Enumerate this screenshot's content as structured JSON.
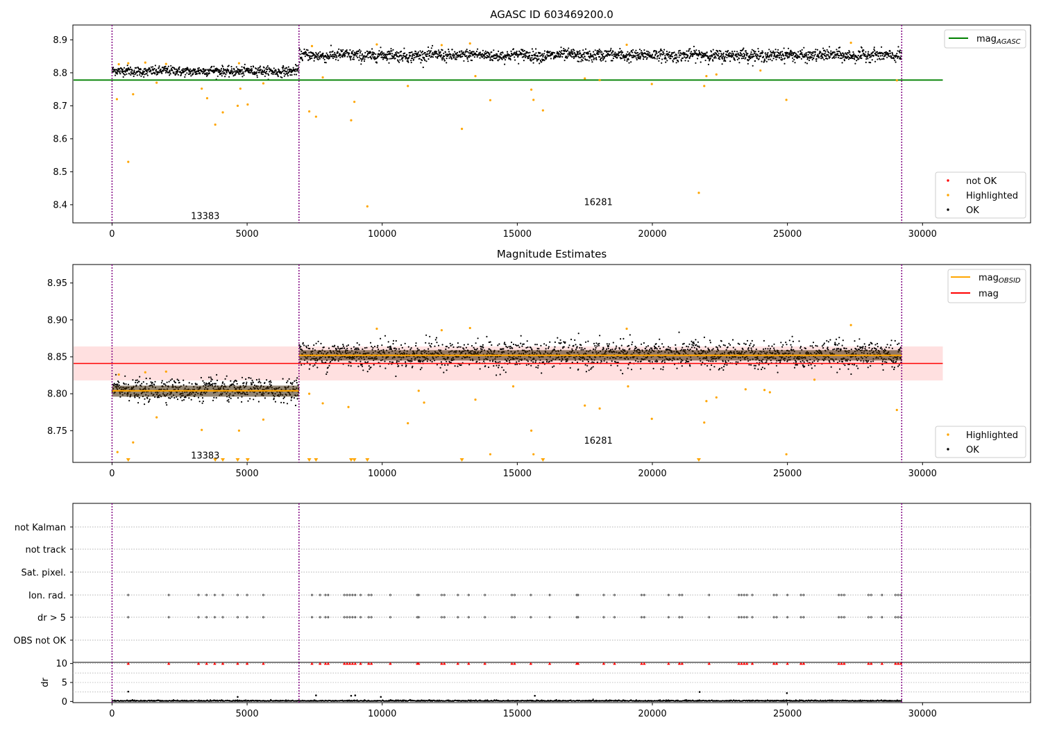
{
  "chart_data": [
    {
      "type": "scatter",
      "title": "AGASC ID 603469200.0",
      "xlim": [
        -1450,
        34000
      ],
      "ylim": [
        8.345,
        8.945
      ],
      "xticks": [
        0,
        5000,
        10000,
        15000,
        20000,
        25000,
        30000
      ],
      "yticks": [
        8.4,
        8.5,
        8.6,
        8.7,
        8.8,
        8.9
      ],
      "ytick_labels": [
        "8.4",
        "8.5",
        "8.6",
        "8.7",
        "8.8",
        "8.9"
      ],
      "vlines": [
        0,
        6920,
        29230
      ],
      "vline_color": "#800080",
      "obsid_labels": [
        {
          "text": "13383",
          "x": 3450,
          "y": 8.365
        },
        {
          "text": "16281",
          "x": 18000,
          "y": 8.407
        }
      ],
      "mag_agasc": {
        "y": 8.778,
        "x_range": [
          -1450,
          30750
        ],
        "color": "#008000"
      },
      "segments": [
        {
          "x_range": [
            0,
            6920
          ],
          "mean": 8.805,
          "spread": 0.009
        },
        {
          "x_range": [
            6920,
            29230
          ],
          "mean": 8.853,
          "spread": 0.011
        }
      ],
      "ok_color": "#000000",
      "highlighted_color": "#ffa500",
      "not_ok_color": "#ff0000",
      "highlighted_points": [
        [
          180,
          8.72
        ],
        [
          600,
          8.53
        ],
        [
          780,
          8.735
        ],
        [
          1650,
          8.77
        ],
        [
          3320,
          8.752
        ],
        [
          3520,
          8.723
        ],
        [
          3820,
          8.643
        ],
        [
          4100,
          8.68
        ],
        [
          4650,
          8.7
        ],
        [
          4750,
          8.752
        ],
        [
          5020,
          8.704
        ],
        [
          5600,
          8.768
        ],
        [
          7300,
          8.683
        ],
        [
          7550,
          8.667
        ],
        [
          7800,
          8.786
        ],
        [
          8850,
          8.656
        ],
        [
          8970,
          8.712
        ],
        [
          9450,
          8.395
        ],
        [
          10950,
          8.76
        ],
        [
          12950,
          8.63
        ],
        [
          13450,
          8.79
        ],
        [
          14000,
          8.717
        ],
        [
          15520,
          8.749
        ],
        [
          15600,
          8.718
        ],
        [
          15950,
          8.686
        ],
        [
          17500,
          8.783
        ],
        [
          18050,
          8.778
        ],
        [
          19980,
          8.766
        ],
        [
          21720,
          8.436
        ],
        [
          21920,
          8.76
        ],
        [
          22000,
          8.79
        ],
        [
          22370,
          8.795
        ],
        [
          24000,
          8.807
        ],
        [
          24960,
          8.718
        ],
        [
          29050,
          8.777
        ],
        [
          250,
          8.826
        ],
        [
          600,
          8.829
        ],
        [
          1230,
          8.831
        ],
        [
          2000,
          8.827
        ],
        [
          4700,
          8.829
        ],
        [
          7400,
          8.881
        ],
        [
          9800,
          8.886
        ],
        [
          13250,
          8.889
        ],
        [
          19050,
          8.885
        ],
        [
          27350,
          8.891
        ],
        [
          12200,
          8.884
        ]
      ],
      "legends": [
        {
          "position": "upper right",
          "entries": [
            {
              "label": "mag",
              "sub": "AGASC",
              "color": "#008000",
              "kind": "line"
            }
          ]
        },
        {
          "position": "lower right",
          "entries": [
            {
              "label": "not OK",
              "color": "#ff0000",
              "kind": "dot"
            },
            {
              "label": "Highlighted",
              "color": "#ffa500",
              "kind": "dot"
            },
            {
              "label": "OK",
              "color": "#000000",
              "kind": "dot"
            }
          ]
        }
      ]
    },
    {
      "type": "scatter",
      "title": "Magnitude Estimates",
      "xlim": [
        -1450,
        34000
      ],
      "ylim": [
        8.707,
        8.975
      ],
      "xticks": [
        0,
        5000,
        10000,
        15000,
        20000,
        25000,
        30000
      ],
      "yticks": [
        8.75,
        8.8,
        8.85,
        8.9,
        8.95
      ],
      "ytick_labels": [
        "8.75",
        "8.80",
        "8.85",
        "8.90",
        "8.95"
      ],
      "vlines": [
        0,
        6920,
        29230
      ],
      "obsid_labels": [
        {
          "text": "13383",
          "x": 3450,
          "y": 8.716
        },
        {
          "text": "16281",
          "x": 18000,
          "y": 8.736
        }
      ],
      "mag": {
        "y": 8.841,
        "band": [
          8.818,
          8.864
        ],
        "x_range": [
          -1450,
          30750
        ],
        "color": "#ff0000",
        "band_color": "#ffe0e0"
      },
      "mag_obsid": [
        {
          "x_range": [
            0,
            6920
          ],
          "y": 8.804,
          "band": [
            8.796,
            8.811
          ]
        },
        {
          "x_range": [
            6920,
            29230
          ],
          "y": 8.852,
          "band": [
            8.845,
            8.859
          ]
        }
      ],
      "segments": [
        {
          "x_range": [
            0,
            6920
          ],
          "mean": 8.805,
          "spread": 0.009
        },
        {
          "x_range": [
            6920,
            29230
          ],
          "mean": 8.853,
          "spread": 0.011
        }
      ],
      "highlighted_points": [
        [
          250,
          8.826
        ],
        [
          780,
          8.734
        ],
        [
          1650,
          8.768
        ],
        [
          3320,
          8.751
        ],
        [
          4700,
          8.75
        ],
        [
          5600,
          8.765
        ],
        [
          7300,
          8.8
        ],
        [
          7800,
          8.787
        ],
        [
          8750,
          8.782
        ],
        [
          10950,
          8.76
        ],
        [
          11350,
          8.804
        ],
        [
          11550,
          8.788
        ],
        [
          13450,
          8.792
        ],
        [
          14000,
          8.718
        ],
        [
          14850,
          8.81
        ],
        [
          15520,
          8.75
        ],
        [
          15600,
          8.718
        ],
        [
          17500,
          8.784
        ],
        [
          18050,
          8.78
        ],
        [
          19100,
          8.81
        ],
        [
          19980,
          8.766
        ],
        [
          21920,
          8.761
        ],
        [
          22000,
          8.79
        ],
        [
          22370,
          8.795
        ],
        [
          23450,
          8.806
        ],
        [
          24150,
          8.805
        ],
        [
          24350,
          8.802
        ],
        [
          24960,
          8.718
        ],
        [
          26000,
          8.819
        ],
        [
          29050,
          8.778
        ],
        [
          200,
          8.721
        ],
        [
          1230,
          8.829
        ],
        [
          2000,
          8.83
        ],
        [
          9800,
          8.888
        ],
        [
          13250,
          8.889
        ],
        [
          27350,
          8.893
        ],
        [
          19050,
          8.888
        ],
        [
          12200,
          8.886
        ]
      ],
      "offscale_markers": [
        600,
        3820,
        4100,
        4650,
        5020,
        7300,
        7550,
        8850,
        8970,
        9450,
        12950,
        15950,
        21720
      ],
      "legends": [
        {
          "position": "upper right",
          "entries": [
            {
              "label": "mag",
              "sub": "OBSID",
              "color": "#ffa500",
              "kind": "line"
            },
            {
              "label": "mag",
              "sub": "",
              "color": "#ff0000",
              "kind": "line"
            }
          ]
        },
        {
          "position": "lower right",
          "entries": [
            {
              "label": "Highlighted",
              "color": "#ffa500",
              "kind": "dot"
            },
            {
              "label": "OK",
              "color": "#000000",
              "kind": "dot"
            }
          ]
        }
      ]
    },
    {
      "type": "scatter",
      "title": "",
      "xlim": [
        -1450,
        34000
      ],
      "flag_labels": [
        "not Kalman",
        "not track",
        "Sat. pixel.",
        "Ion. rad.",
        "dr > 5",
        "OBS not OK"
      ],
      "flag_rows": {
        "Ion. rad.": [
          600,
          2100,
          3200,
          3500,
          3800,
          4100,
          4650,
          5000,
          5600,
          7400,
          7700,
          7900,
          8000,
          8600,
          8700,
          8800,
          8900,
          9000,
          9200,
          9500,
          9600,
          10300,
          11300,
          11350,
          12200,
          12300,
          12800,
          13200,
          13800,
          14800,
          14900,
          15500,
          16200,
          17200,
          17250,
          18200,
          18600,
          19600,
          19700,
          20600,
          21000,
          21100,
          22100,
          23200,
          23300,
          23400,
          23500,
          23700,
          24500,
          24600,
          25000,
          25500,
          25600,
          26900,
          27000,
          27100,
          28000,
          28100,
          28500,
          29000,
          29100,
          29200
        ],
        "dr > 5": [
          600,
          2100,
          3200,
          3500,
          3800,
          4100,
          4650,
          5000,
          5600,
          7400,
          7700,
          7900,
          8000,
          8600,
          8700,
          8800,
          8900,
          9000,
          9200,
          9500,
          9600,
          10300,
          11300,
          11350,
          12200,
          12300,
          12800,
          13200,
          13800,
          14800,
          14900,
          15500,
          16200,
          17200,
          17250,
          18200,
          18600,
          19600,
          19700,
          20600,
          21000,
          21100,
          22100,
          23200,
          23300,
          23400,
          23500,
          23700,
          24500,
          24600,
          25000,
          25500,
          25600,
          26900,
          27000,
          27100,
          28000,
          28100,
          28500,
          29000,
          29100,
          29200
        ]
      }
    },
    {
      "type": "scatter",
      "title": "",
      "ylabel": "dr",
      "xlim": [
        -1450,
        34000
      ],
      "ylim": [
        -0.3,
        10.3
      ],
      "xticks": [
        0,
        5000,
        10000,
        15000,
        20000,
        25000,
        30000
      ],
      "yticks": [
        0,
        5,
        10
      ],
      "clip_value": 10,
      "outlier_points": [
        [
          600,
          2.6
        ],
        [
          4650,
          1.2
        ],
        [
          7550,
          1.6
        ],
        [
          8850,
          1.5
        ],
        [
          9000,
          1.6
        ],
        [
          9950,
          1.2
        ],
        [
          15650,
          1.5
        ],
        [
          21750,
          2.5
        ],
        [
          24980,
          2.2
        ]
      ],
      "clipped_x": [
        600,
        2100,
        3200,
        3500,
        3800,
        4100,
        4650,
        5000,
        5600,
        7400,
        7700,
        7900,
        8000,
        8600,
        8700,
        8800,
        8900,
        9000,
        9200,
        9500,
        9600,
        10300,
        11300,
        11350,
        12200,
        12300,
        12800,
        13200,
        13800,
        14800,
        14900,
        15500,
        16200,
        17200,
        17250,
        18200,
        18600,
        19600,
        19700,
        20600,
        21000,
        21100,
        22100,
        23200,
        23300,
        23400,
        23500,
        23700,
        24500,
        24600,
        25000,
        25500,
        25600,
        26900,
        27000,
        27100,
        28000,
        28100,
        28500,
        29000,
        29100,
        29200
      ]
    }
  ]
}
